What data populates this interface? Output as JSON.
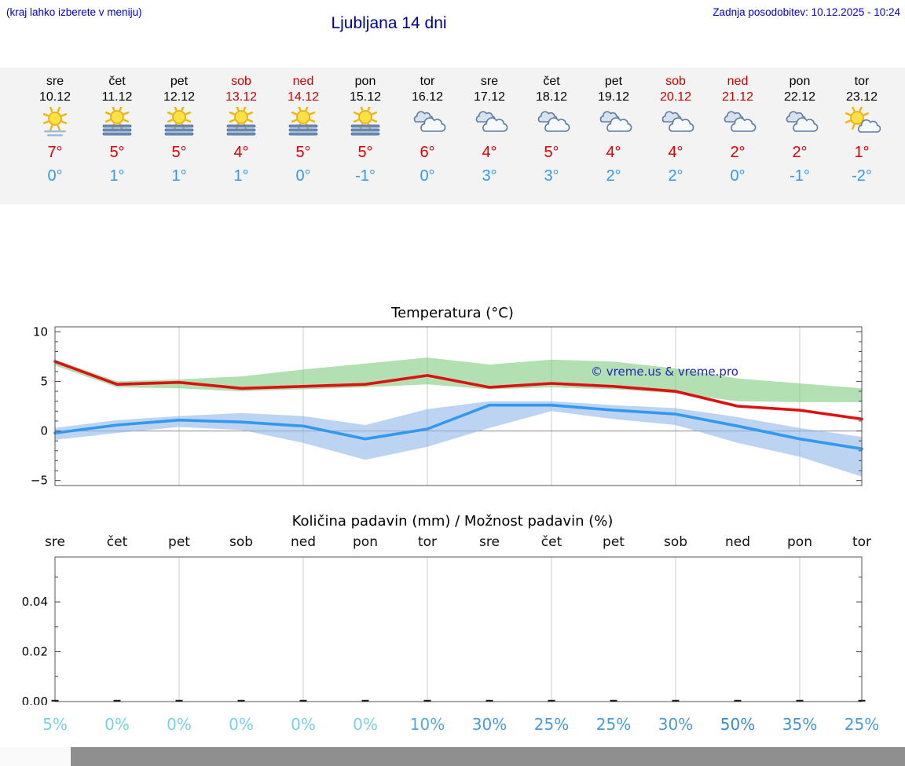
{
  "header": {
    "left_note": "(kraj lahko izberete v meniju)",
    "title": "Ljubljana 14 dni",
    "updated": "Zadnja posodobitev: 10.12.2025 - 10:24"
  },
  "colors": {
    "link_blue": "#0000cc",
    "title_blue": "#000099",
    "high_red": "#dd0000",
    "low_blue": "#3399ee",
    "weekend_red": "#cc0000",
    "strip_bg": "#f3f3f3"
  },
  "forecast": {
    "days": [
      {
        "name": "sre",
        "date": "10.12",
        "icon": "sun-haze",
        "high": "7°",
        "low": "0°",
        "weekend": false
      },
      {
        "name": "čet",
        "date": "11.12",
        "icon": "fog-sun",
        "high": "5°",
        "low": "1°",
        "weekend": false
      },
      {
        "name": "pet",
        "date": "12.12",
        "icon": "fog-sun",
        "high": "5°",
        "low": "1°",
        "weekend": false
      },
      {
        "name": "sob",
        "date": "13.12",
        "icon": "fog-sun",
        "high": "4°",
        "low": "1°",
        "weekend": true
      },
      {
        "name": "ned",
        "date": "14.12",
        "icon": "fog-sun",
        "high": "5°",
        "low": "0°",
        "weekend": true
      },
      {
        "name": "pon",
        "date": "15.12",
        "icon": "fog-sun",
        "high": "5°",
        "low": "-1°",
        "weekend": false
      },
      {
        "name": "tor",
        "date": "16.12",
        "icon": "cloudy",
        "high": "6°",
        "low": "0°",
        "weekend": false
      },
      {
        "name": "sre",
        "date": "17.12",
        "icon": "cloudy",
        "high": "4°",
        "low": "3°",
        "weekend": false
      },
      {
        "name": "čet",
        "date": "18.12",
        "icon": "cloudy",
        "high": "5°",
        "low": "3°",
        "weekend": false
      },
      {
        "name": "pet",
        "date": "19.12",
        "icon": "cloudy",
        "high": "4°",
        "low": "2°",
        "weekend": false
      },
      {
        "name": "sob",
        "date": "20.12",
        "icon": "cloudy",
        "high": "4°",
        "low": "2°",
        "weekend": true
      },
      {
        "name": "ned",
        "date": "21.12",
        "icon": "cloudy",
        "high": "2°",
        "low": "0°",
        "weekend": true
      },
      {
        "name": "pon",
        "date": "22.12",
        "icon": "cloudy",
        "high": "2°",
        "low": "-1°",
        "weekend": false
      },
      {
        "name": "tor",
        "date": "23.12",
        "icon": "sun-cloud",
        "high": "1°",
        "low": "-2°",
        "weekend": false
      }
    ]
  },
  "chart_data": [
    {
      "type": "line",
      "title": "Temperatura (°C)",
      "categories": [
        "10.12",
        "11.12",
        "12.12",
        "13.12",
        "14.12",
        "15.12",
        "16.12",
        "17.12",
        "18.12",
        "19.12",
        "20.12",
        "21.12",
        "22.12",
        "23.12"
      ],
      "series": [
        {
          "name": "max-temp",
          "color": "#dd1111",
          "values": [
            7,
            4.7,
            4.9,
            4.3,
            4.5,
            4.7,
            5.6,
            4.4,
            4.8,
            4.5,
            4.0,
            2.5,
            2.1,
            1.2
          ]
        },
        {
          "name": "min-temp",
          "color": "#3399ee",
          "values": [
            -0.2,
            0.6,
            1.1,
            0.9,
            0.5,
            -0.8,
            0.2,
            2.6,
            2.6,
            2.1,
            1.7,
            0.5,
            -0.8,
            -1.8
          ]
        }
      ],
      "bands": [
        {
          "name": "max-range",
          "color": "#7ecb7e",
          "opacity": 0.6,
          "upper": [
            7.2,
            5.0,
            5.2,
            5.5,
            6.2,
            6.8,
            7.4,
            6.7,
            7.2,
            7.0,
            6.3,
            5.3,
            4.8,
            4.3
          ],
          "lower": [
            6.6,
            4.4,
            4.3,
            4.0,
            4.2,
            4.4,
            4.7,
            4.2,
            4.4,
            4.2,
            3.8,
            3.0,
            2.9,
            2.9
          ]
        },
        {
          "name": "min-range",
          "color": "#8fb7ea",
          "opacity": 0.6,
          "upper": [
            0.3,
            1.1,
            1.5,
            1.8,
            1.5,
            0.6,
            2.2,
            3.0,
            3.0,
            2.6,
            2.3,
            1.4,
            0.3,
            -0.6
          ],
          "lower": [
            -0.9,
            -0.2,
            0.4,
            0.1,
            -1.2,
            -2.9,
            -1.6,
            0.3,
            2.0,
            1.2,
            0.6,
            -1.2,
            -2.6,
            -4.6
          ]
        }
      ],
      "ylim": [
        -5.5,
        10.5
      ],
      "yticks": [
        {
          "v": 10,
          "label": "10"
        },
        {
          "v": 5,
          "label": "5"
        },
        {
          "v": 0,
          "label": "0"
        },
        {
          "v": -5,
          "label": "−5"
        }
      ],
      "grid_day_indices": [
        2,
        4,
        6,
        8,
        10,
        12
      ],
      "watermark": "© vreme.us & vreme.pro"
    },
    {
      "type": "bar",
      "title": "Količina padavin (mm) / Možnost padavin (%)",
      "day_labels": [
        "sre",
        "čet",
        "pet",
        "sob",
        "ned",
        "pon",
        "tor",
        "sre",
        "čet",
        "pet",
        "sob",
        "ned",
        "pon",
        "tor"
      ],
      "values": [
        0,
        0,
        0,
        0,
        0,
        0,
        0,
        0,
        0,
        0,
        0,
        0,
        0,
        0
      ],
      "probabilities": [
        {
          "label": "5%",
          "color": "#76d2e2"
        },
        {
          "label": "0%",
          "color": "#76d2e2"
        },
        {
          "label": "0%",
          "color": "#76d2e2"
        },
        {
          "label": "0%",
          "color": "#76d2e2"
        },
        {
          "label": "0%",
          "color": "#76d2e2"
        },
        {
          "label": "0%",
          "color": "#76d2e2"
        },
        {
          "label": "10%",
          "color": "#55a8d8"
        },
        {
          "label": "30%",
          "color": "#4a9ad4"
        },
        {
          "label": "25%",
          "color": "#4a9ad4"
        },
        {
          "label": "25%",
          "color": "#4a9ad4"
        },
        {
          "label": "30%",
          "color": "#4a9ad4"
        },
        {
          "label": "50%",
          "color": "#3a8cce"
        },
        {
          "label": "35%",
          "color": "#4394d1"
        },
        {
          "label": "25%",
          "color": "#4a9ad4"
        }
      ],
      "ylim": [
        0,
        0.058
      ],
      "yticks": [
        {
          "v": 0,
          "label": "0.00"
        },
        {
          "v": 0.02,
          "label": "0.02"
        },
        {
          "v": 0.04,
          "label": "0.04"
        }
      ],
      "grid_day_indices": [
        2,
        4,
        6,
        8,
        10,
        12
      ]
    }
  ]
}
